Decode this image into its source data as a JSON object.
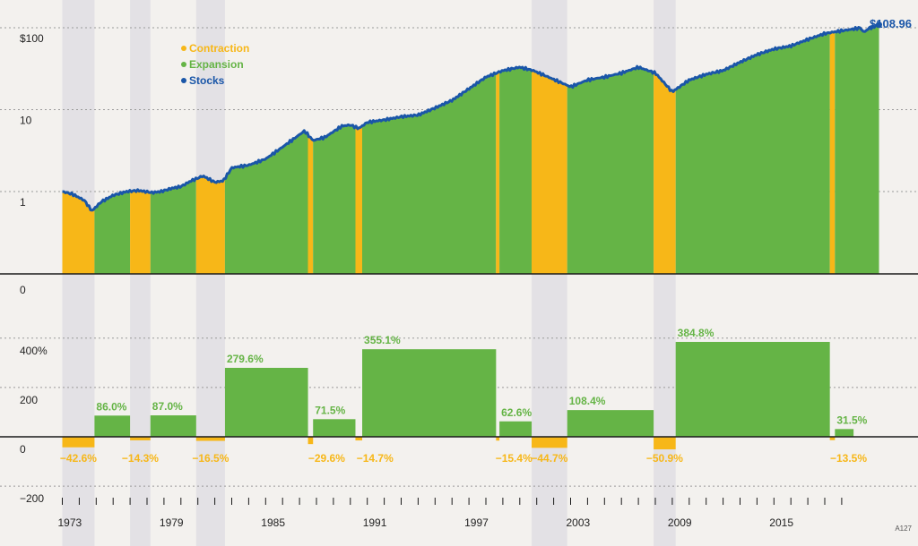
{
  "chart_data": [
    {
      "type": "area",
      "scale": "log",
      "ylim": [
        0.1,
        130
      ],
      "y_ticks": [
        {
          "v": 1,
          "label": "1"
        },
        {
          "v": 10,
          "label": "10"
        },
        {
          "v": 100,
          "label": "$100"
        }
      ],
      "end_value_label": "$108.96",
      "legend": {
        "placement": "top-left",
        "items": [
          {
            "name": "Contraction",
            "color": "#f7b718"
          },
          {
            "name": "Expansion",
            "color": "#65b446"
          },
          {
            "name": "Stocks",
            "color": "#1a56a8"
          }
        ]
      },
      "stocks_series": [
        [
          1973.0,
          1.0
        ],
        [
          1973.6,
          0.93
        ],
        [
          1974.3,
          0.78
        ],
        [
          1974.75,
          0.58
        ],
        [
          1975.3,
          0.75
        ],
        [
          1976.0,
          0.9
        ],
        [
          1976.8,
          1.0
        ],
        [
          1977.5,
          1.03
        ],
        [
          1978.3,
          0.97
        ],
        [
          1978.8,
          1.0
        ],
        [
          1979.5,
          1.1
        ],
        [
          1980.0,
          1.15
        ],
        [
          1980.6,
          1.35
        ],
        [
          1981.3,
          1.55
        ],
        [
          1982.0,
          1.3
        ],
        [
          1982.5,
          1.35
        ],
        [
          1983.0,
          1.95
        ],
        [
          1984.0,
          2.1
        ],
        [
          1985.0,
          2.5
        ],
        [
          1986.0,
          3.5
        ],
        [
          1987.3,
          5.5
        ],
        [
          1987.8,
          4.2
        ],
        [
          1988.5,
          4.6
        ],
        [
          1989.5,
          6.3
        ],
        [
          1990.0,
          6.5
        ],
        [
          1990.5,
          5.9
        ],
        [
          1991.0,
          7.0
        ],
        [
          1992.0,
          7.5
        ],
        [
          1993.0,
          8.2
        ],
        [
          1994.0,
          8.6
        ],
        [
          1995.0,
          10.5
        ],
        [
          1996.0,
          13.0
        ],
        [
          1997.0,
          18.0
        ],
        [
          1998.0,
          25.0
        ],
        [
          1999.0,
          30.0
        ],
        [
          2000.0,
          33.0
        ],
        [
          2000.8,
          30.0
        ],
        [
          2001.5,
          26.0
        ],
        [
          2002.3,
          22.0
        ],
        [
          2003.0,
          19.0
        ],
        [
          2004.0,
          23.0
        ],
        [
          2005.0,
          25.0
        ],
        [
          2006.0,
          28.0
        ],
        [
          2007.0,
          33.0
        ],
        [
          2008.0,
          28.0
        ],
        [
          2009.0,
          16.5
        ],
        [
          2010.0,
          23.0
        ],
        [
          2011.0,
          27.0
        ],
        [
          2012.0,
          30.0
        ],
        [
          2013.0,
          38.0
        ],
        [
          2014.0,
          47.0
        ],
        [
          2015.0,
          55.0
        ],
        [
          2016.0,
          60.0
        ],
        [
          2017.0,
          72.0
        ],
        [
          2018.0,
          85.0
        ],
        [
          2019.0,
          92.0
        ],
        [
          2019.5,
          95.0
        ],
        [
          2020.1,
          100.0
        ],
        [
          2020.3,
          88.0
        ],
        [
          2020.6,
          98.0
        ],
        [
          2021.2,
          108.96
        ]
      ]
    },
    {
      "type": "bar",
      "ylim": [
        -250,
        450
      ],
      "y_ticks": [
        {
          "v": 400,
          "label": "400%"
        },
        {
          "v": 200,
          "label": "200"
        },
        {
          "v": 0,
          "label": "0"
        },
        {
          "v": -200,
          "label": "−200"
        }
      ],
      "top_zero_label": "0",
      "x_ticks": [
        1973,
        1979,
        1985,
        1991,
        1997,
        2003,
        2009,
        2015
      ],
      "periods": [
        {
          "phase": "contraction",
          "start": 1973.0,
          "end": 1974.9,
          "value": -42.6,
          "label": "−42.6%"
        },
        {
          "phase": "expansion",
          "start": 1974.9,
          "end": 1977.0,
          "value": 86.0,
          "label": "86.0%"
        },
        {
          "phase": "contraction",
          "start": 1977.0,
          "end": 1978.2,
          "value": -14.3,
          "label": "−14.3%"
        },
        {
          "phase": "expansion",
          "start": 1978.2,
          "end": 1980.9,
          "value": 87.0,
          "label": "87.0%"
        },
        {
          "phase": "contraction",
          "start": 1980.9,
          "end": 1982.6,
          "value": -16.5,
          "label": "−16.5%"
        },
        {
          "phase": "expansion",
          "start": 1982.6,
          "end": 1987.5,
          "value": 279.6,
          "label": "279.6%"
        },
        {
          "phase": "contraction",
          "start": 1987.5,
          "end": 1987.8,
          "value": -29.6,
          "label": "−29.6%"
        },
        {
          "phase": "expansion",
          "start": 1987.8,
          "end": 1990.3,
          "value": 71.5,
          "label": "71.5%"
        },
        {
          "phase": "contraction",
          "start": 1990.3,
          "end": 1990.7,
          "value": -14.7,
          "label": "−14.7%"
        },
        {
          "phase": "expansion",
          "start": 1990.7,
          "end": 1998.6,
          "value": 355.1,
          "label": "355.1%"
        },
        {
          "phase": "contraction",
          "start": 1998.6,
          "end": 1998.8,
          "value": -15.4,
          "label": "−15.4%"
        },
        {
          "phase": "expansion",
          "start": 1998.8,
          "end": 2000.7,
          "value": 62.6,
          "label": "62.6%"
        },
        {
          "phase": "contraction",
          "start": 2000.7,
          "end": 2002.8,
          "value": -44.7,
          "label": "−44.7%"
        },
        {
          "phase": "expansion",
          "start": 2002.8,
          "end": 2007.9,
          "value": 108.4,
          "label": "108.4%"
        },
        {
          "phase": "contraction",
          "start": 2007.9,
          "end": 2009.2,
          "value": -50.9,
          "label": "−50.9%"
        },
        {
          "phase": "expansion",
          "start": 2009.2,
          "end": 2018.3,
          "value": 384.8,
          "label": "384.8%"
        },
        {
          "phase": "contraction",
          "start": 2018.3,
          "end": 2018.6,
          "value": -13.5,
          "label": "−13.5%"
        },
        {
          "phase": "expansion",
          "start": 2018.6,
          "end": 2019.7,
          "value": 31.5,
          "label": "31.5%"
        }
      ]
    }
  ],
  "recession_bands": [
    [
      1973.0,
      1974.9
    ],
    [
      1977.0,
      1978.2
    ],
    [
      1980.9,
      1982.6
    ],
    [
      2000.7,
      2002.8
    ],
    [
      2007.9,
      2009.2
    ]
  ],
  "footnote": "A127",
  "colors": {
    "contraction": "#f7b718",
    "expansion": "#65b446",
    "stocks": "#1a56a8",
    "background": "#f3f1ee",
    "band": "#e3e1e5",
    "grid": "#9a9a9a",
    "axis": "#1a1a1a"
  }
}
